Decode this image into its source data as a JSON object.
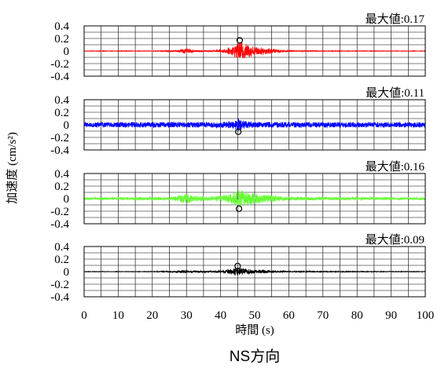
{
  "page_title": "NS方向",
  "shared_xlabel": "時間 (s)",
  "shared_ylabel": "加速度 (cm/s²)",
  "chart_data": [
    {
      "type": "line",
      "max_label": "最大値:0.17",
      "max_marker": {
        "x": 45.6,
        "y": 0.17
      },
      "color": "#ff0000",
      "xlim": [
        0,
        100
      ],
      "ylim": [
        -0.4,
        0.4
      ],
      "xticks": [
        0,
        10,
        20,
        30,
        40,
        50,
        60,
        70,
        80,
        90,
        100
      ],
      "yticks": [
        "0.4",
        "0.2",
        "0",
        "-0.2",
        "-0.4"
      ],
      "grid": true,
      "envelope": [
        {
          "x": 0,
          "amp": 0.004
        },
        {
          "x": 20,
          "amp": 0.004
        },
        {
          "x": 27,
          "amp": 0.01
        },
        {
          "x": 29,
          "amp": 0.04
        },
        {
          "x": 31,
          "amp": 0.03
        },
        {
          "x": 33,
          "amp": 0.012
        },
        {
          "x": 38,
          "amp": 0.01
        },
        {
          "x": 41,
          "amp": 0.03
        },
        {
          "x": 43,
          "amp": 0.06
        },
        {
          "x": 45,
          "amp": 0.12
        },
        {
          "x": 46,
          "amp": 0.15
        },
        {
          "x": 48,
          "amp": 0.1
        },
        {
          "x": 51,
          "amp": 0.06
        },
        {
          "x": 54,
          "amp": 0.05
        },
        {
          "x": 56,
          "amp": 0.03
        },
        {
          "x": 60,
          "amp": 0.01
        },
        {
          "x": 70,
          "amp": 0.005
        },
        {
          "x": 100,
          "amp": 0.004
        }
      ]
    },
    {
      "type": "line",
      "max_label": "最大値:0.11",
      "max_marker": {
        "x": 45.2,
        "y": -0.11
      },
      "color": "#0000ff",
      "xlim": [
        0,
        100
      ],
      "ylim": [
        -0.4,
        0.4
      ],
      "xticks": [
        0,
        10,
        20,
        30,
        40,
        50,
        60,
        70,
        80,
        90,
        100
      ],
      "yticks": [
        "0.4",
        "0.2",
        "0",
        "-0.2",
        "-0.4"
      ],
      "grid": true,
      "envelope": [
        {
          "x": 0,
          "amp": 0.04
        },
        {
          "x": 40,
          "amp": 0.045
        },
        {
          "x": 44,
          "amp": 0.06
        },
        {
          "x": 45,
          "amp": 0.1
        },
        {
          "x": 47,
          "amp": 0.06
        },
        {
          "x": 50,
          "amp": 0.045
        },
        {
          "x": 100,
          "amp": 0.04
        }
      ]
    },
    {
      "type": "line",
      "max_label": "最大値:0.16",
      "max_marker": {
        "x": 45.4,
        "y": -0.16
      },
      "color": "#66ff33",
      "xlim": [
        0,
        100
      ],
      "ylim": [
        -0.4,
        0.4
      ],
      "xticks": [
        0,
        10,
        20,
        30,
        40,
        50,
        60,
        70,
        80,
        90,
        100
      ],
      "yticks": [
        "0.4",
        "0.2",
        "0",
        "-0.2",
        "-0.4"
      ],
      "grid": true,
      "envelope": [
        {
          "x": 0,
          "amp": 0.02
        },
        {
          "x": 25,
          "amp": 0.025
        },
        {
          "x": 28,
          "amp": 0.05
        },
        {
          "x": 30,
          "amp": 0.09
        },
        {
          "x": 32,
          "amp": 0.05
        },
        {
          "x": 37,
          "amp": 0.035
        },
        {
          "x": 42,
          "amp": 0.06
        },
        {
          "x": 44,
          "amp": 0.1
        },
        {
          "x": 45.5,
          "amp": 0.15
        },
        {
          "x": 48,
          "amp": 0.1
        },
        {
          "x": 52,
          "amp": 0.07
        },
        {
          "x": 56,
          "amp": 0.05
        },
        {
          "x": 60,
          "amp": 0.03
        },
        {
          "x": 70,
          "amp": 0.025
        },
        {
          "x": 100,
          "amp": 0.02
        }
      ]
    },
    {
      "type": "line",
      "max_label": "最大値:0.09",
      "max_marker": {
        "x": 45.0,
        "y": 0.09
      },
      "color": "#000000",
      "xlim": [
        0,
        100
      ],
      "ylim": [
        -0.4,
        0.4
      ],
      "xticks": [
        0,
        10,
        20,
        30,
        40,
        50,
        60,
        70,
        80,
        90,
        100
      ],
      "yticks": [
        "0.4",
        "0.2",
        "0",
        "-0.2",
        "-0.4"
      ],
      "grid": true,
      "envelope": [
        {
          "x": 0,
          "amp": 0.004
        },
        {
          "x": 20,
          "amp": 0.004
        },
        {
          "x": 26,
          "amp": 0.01
        },
        {
          "x": 29,
          "amp": 0.025
        },
        {
          "x": 32,
          "amp": 0.015
        },
        {
          "x": 38,
          "amp": 0.012
        },
        {
          "x": 42,
          "amp": 0.03
        },
        {
          "x": 45,
          "amp": 0.07
        },
        {
          "x": 47,
          "amp": 0.05
        },
        {
          "x": 51,
          "amp": 0.03
        },
        {
          "x": 55,
          "amp": 0.02
        },
        {
          "x": 60,
          "amp": 0.008
        },
        {
          "x": 100,
          "amp": 0.004
        }
      ]
    }
  ]
}
